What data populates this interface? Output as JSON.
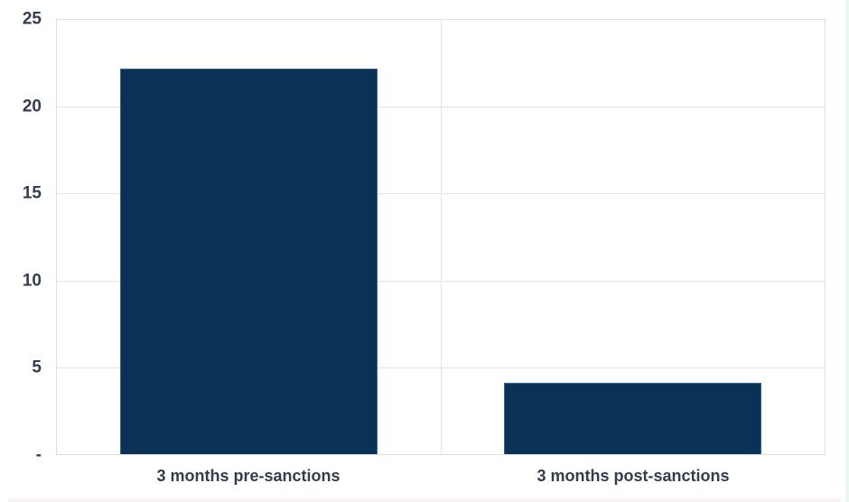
{
  "chart_data": {
    "type": "bar",
    "title": "",
    "xlabel": "",
    "ylabel": "",
    "categories": [
      "3 months pre-sanctions",
      "3 months post-sanctions"
    ],
    "values": [
      22.2,
      4.1
    ],
    "ylim": [
      0,
      25
    ],
    "yticks": [
      {
        "value": 0,
        "label": "-"
      },
      {
        "value": 5,
        "label": "5"
      },
      {
        "value": 10,
        "label": "10"
      },
      {
        "value": 15,
        "label": "15"
      },
      {
        "value": 20,
        "label": "20"
      },
      {
        "value": 25,
        "label": "25"
      }
    ],
    "grid": true,
    "legend": false,
    "bar_width_fraction": 0.67,
    "colors": {
      "background": "#ffffff",
      "bar_fill": "#0c3157",
      "bar_edge": "#3f6288",
      "gridline": "#e3e3e3",
      "plot_border": "#dedede",
      "tick_label": "#333d4c",
      "category_label": "#333d4c",
      "right_edge_strip": "#e9f9ee",
      "bottom_edge_strip": "#f8f1f0"
    }
  }
}
